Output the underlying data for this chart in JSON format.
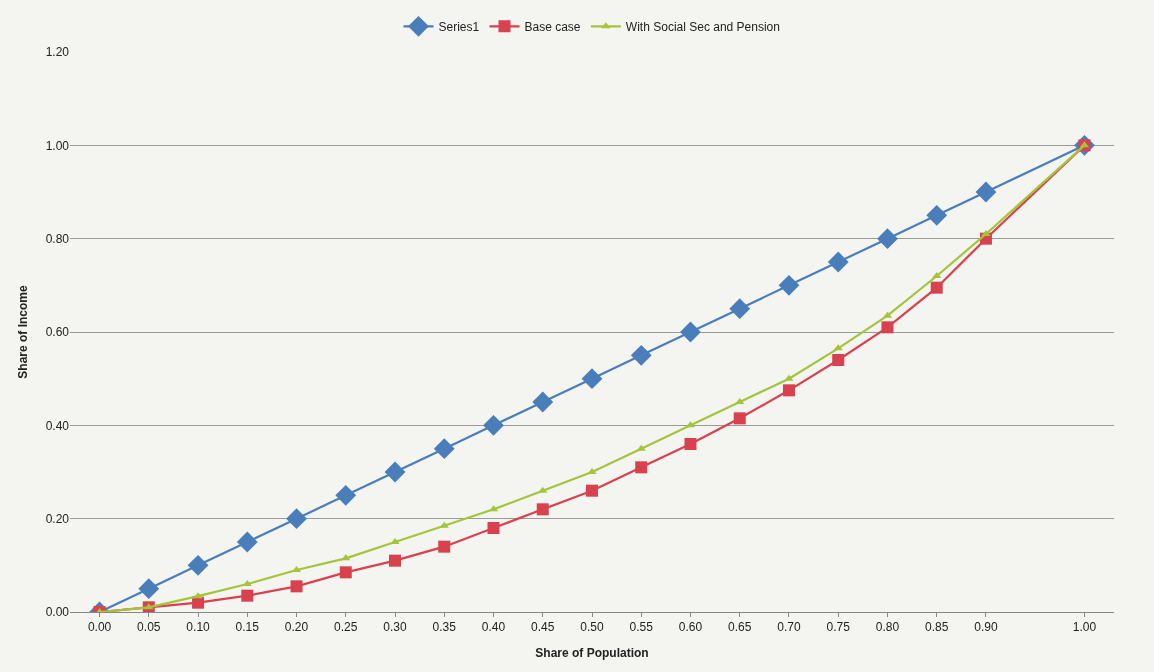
{
  "chart_data": {
    "type": "line",
    "xlabel": "Share of Population",
    "ylabel": "Share of Income",
    "x": [
      0,
      0.05,
      0.1,
      0.15,
      0.2,
      0.25,
      0.3,
      0.35,
      0.4,
      0.45,
      0.5,
      0.55,
      0.6,
      0.65,
      0.7,
      0.75,
      0.8,
      0.85,
      0.9,
      1.0
    ],
    "xlim": [
      -0.03,
      1.03
    ],
    "xticks": [
      {
        "value": 0,
        "label": "0.00"
      },
      {
        "value": 0.05,
        "label": "0.05"
      },
      {
        "value": 0.1,
        "label": "0.10"
      },
      {
        "value": 0.15,
        "label": "0.15"
      },
      {
        "value": 0.2,
        "label": "0.20"
      },
      {
        "value": 0.25,
        "label": "0.25"
      },
      {
        "value": 0.3,
        "label": "0.30"
      },
      {
        "value": 0.35,
        "label": "0.35"
      },
      {
        "value": 0.4,
        "label": "0.40"
      },
      {
        "value": 0.45,
        "label": "0.45"
      },
      {
        "value": 0.5,
        "label": "0.50"
      },
      {
        "value": 0.55,
        "label": "0.55"
      },
      {
        "value": 0.6,
        "label": "0.60"
      },
      {
        "value": 0.65,
        "label": "0.65"
      },
      {
        "value": 0.7,
        "label": "0.70"
      },
      {
        "value": 0.75,
        "label": "0.75"
      },
      {
        "value": 0.8,
        "label": "0.80"
      },
      {
        "value": 0.85,
        "label": "0.85"
      },
      {
        "value": 0.9,
        "label": "0.90"
      },
      {
        "value": 1.0,
        "label": "1.00"
      }
    ],
    "ylim": [
      0,
      1.2
    ],
    "yticks": [
      {
        "value": 0,
        "label": "0.00"
      },
      {
        "value": 0.2,
        "label": "0.20"
      },
      {
        "value": 0.4,
        "label": "0.40"
      },
      {
        "value": 0.6,
        "label": "0.60"
      },
      {
        "value": 0.8,
        "label": "0.80"
      },
      {
        "value": 1.0,
        "label": "1.00"
      },
      {
        "value": 1.2,
        "label": "1.20"
      }
    ],
    "grid": "y",
    "legend": "top",
    "line_style": "solid",
    "series": [
      {
        "name": "Series1",
        "color": "#4a7ebb",
        "marker": "diamond",
        "values": [
          0,
          0.05,
          0.1,
          0.15,
          0.2,
          0.25,
          0.3,
          0.35,
          0.4,
          0.45,
          0.5,
          0.55,
          0.6,
          0.65,
          0.7,
          0.75,
          0.8,
          0.85,
          0.9,
          1.0
        ]
      },
      {
        "name": "Base case",
        "color": "#d9414e",
        "marker": "square",
        "values": [
          0,
          0.01,
          0.02,
          0.035,
          0.055,
          0.085,
          0.11,
          0.14,
          0.18,
          0.22,
          0.26,
          0.31,
          0.36,
          0.415,
          0.475,
          0.54,
          0.61,
          0.695,
          0.8,
          1.0
        ]
      },
      {
        "name": "With Social Sec and Pension",
        "color": "#a4c43c",
        "marker": "triangle",
        "values": [
          0,
          0.01,
          0.034,
          0.06,
          0.09,
          0.115,
          0.15,
          0.185,
          0.22,
          0.26,
          0.3,
          0.35,
          0.4,
          0.45,
          0.5,
          0.565,
          0.635,
          0.72,
          0.81,
          1.0
        ]
      }
    ]
  }
}
